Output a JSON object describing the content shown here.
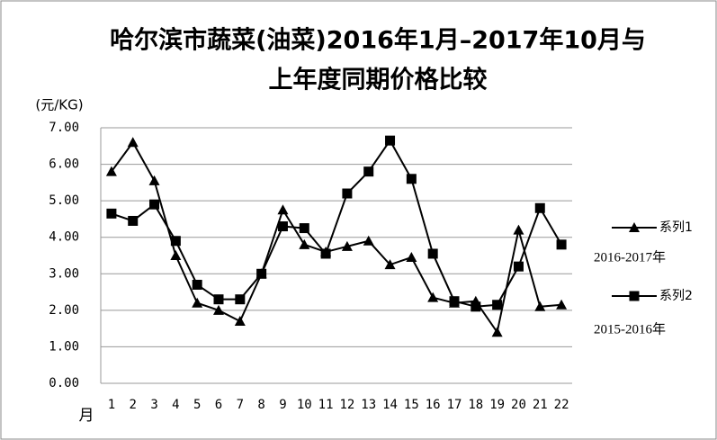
{
  "chart_data": {
    "type": "line",
    "title": [
      "哈尔滨市蔬菜(油菜)2016年1月–2017年10月与",
      "上年度同期价格比较"
    ],
    "y_label": "(元/KG)",
    "x_label": "月",
    "categories": [
      "1",
      "2",
      "3",
      "4",
      "5",
      "6",
      "7",
      "8",
      "9",
      "10",
      "11",
      "12",
      "13",
      "14",
      "15",
      "16",
      "17",
      "18",
      "19",
      "20",
      "21",
      "22"
    ],
    "series": [
      {
        "name": "系列1",
        "color": "#000000",
        "marker": "triangle",
        "values": [
          5.8,
          6.6,
          5.55,
          3.5,
          2.2,
          2.0,
          1.7,
          3.0,
          4.75,
          3.8,
          3.6,
          3.75,
          3.9,
          3.25,
          3.45,
          2.35,
          2.2,
          2.25,
          1.4,
          4.2,
          2.1,
          2.15
        ]
      },
      {
        "name": "系列2",
        "color": "#000000",
        "marker": "square",
        "values": [
          4.65,
          4.45,
          4.9,
          3.9,
          2.7,
          2.3,
          2.3,
          3.0,
          4.3,
          4.25,
          3.55,
          5.2,
          5.8,
          6.65,
          5.6,
          3.55,
          2.25,
          2.1,
          2.15,
          3.2,
          4.8,
          3.8
        ]
      }
    ],
    "annotations": [
      "2016-2017年",
      "2015-2016年"
    ],
    "ylim": [
      0,
      7
    ],
    "yticks": [
      {
        "value": 0,
        "label": "0.00"
      },
      {
        "value": 1,
        "label": "1.00"
      },
      {
        "value": 2,
        "label": "2.00"
      },
      {
        "value": 3,
        "label": "3.00"
      },
      {
        "value": 4,
        "label": "4.00"
      },
      {
        "value": 5,
        "label": "5.00"
      },
      {
        "value": 6,
        "label": "6.00"
      },
      {
        "value": 7,
        "label": "7.00"
      }
    ],
    "grid": true,
    "legend": "right"
  }
}
